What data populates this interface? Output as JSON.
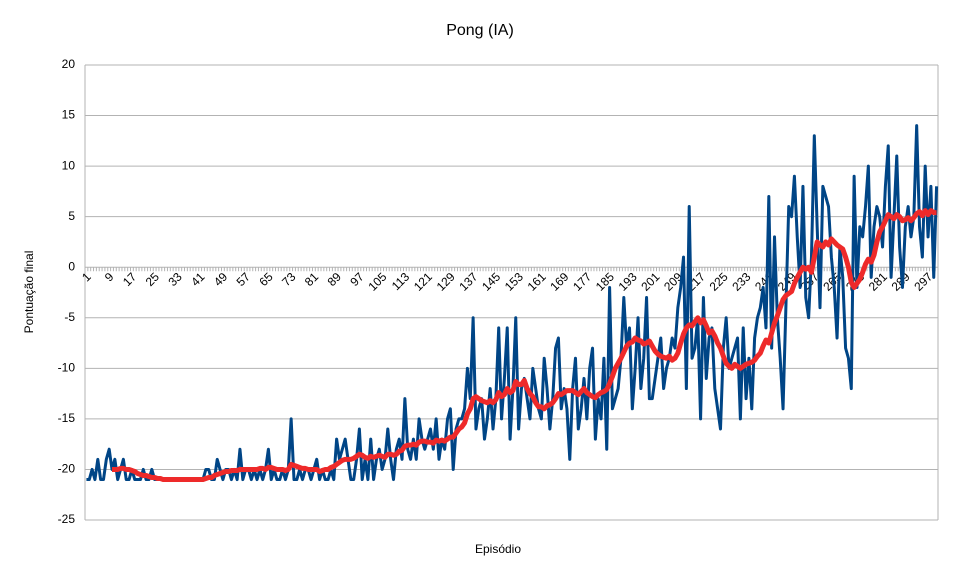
{
  "chart_data": {
    "type": "line",
    "title": "Pong (IA)",
    "x_label": "Episódio",
    "y_label": "Pontuação final",
    "categories": [
      1,
      null,
      null,
      null,
      null,
      null,
      null,
      null,
      9,
      null,
      null,
      null,
      null,
      null,
      null,
      null,
      17,
      null,
      null,
      null,
      null,
      null,
      null,
      null,
      25,
      null,
      null,
      null,
      null,
      null,
      null,
      null,
      33,
      null,
      null,
      null,
      null,
      null,
      null,
      null,
      41,
      null,
      null,
      null,
      null,
      null,
      null,
      null,
      49,
      null,
      null,
      null,
      null,
      null,
      null,
      null,
      57,
      null,
      null,
      null,
      null,
      null,
      null,
      null,
      65,
      null,
      null,
      null,
      null,
      null,
      null,
      null,
      73,
      null,
      null,
      null,
      null,
      null,
      null,
      null,
      81,
      null,
      null,
      null,
      null,
      null,
      null,
      null,
      89,
      null,
      null,
      null,
      null,
      null,
      null,
      null,
      97,
      null,
      null,
      null,
      null,
      null,
      null,
      null,
      105,
      null,
      null,
      null,
      null,
      null,
      null,
      null,
      113,
      null,
      null,
      null,
      null,
      null,
      null,
      null,
      121,
      null,
      null,
      null,
      null,
      null,
      null,
      null,
      129,
      null,
      null,
      null,
      null,
      null,
      null,
      null,
      137,
      null,
      null,
      null,
      null,
      null,
      null,
      null,
      145,
      null,
      null,
      null,
      null,
      null,
      null,
      null,
      153,
      null,
      null,
      null,
      null,
      null,
      null,
      null,
      161,
      null,
      null,
      null,
      null,
      null,
      null,
      null,
      169,
      null,
      null,
      null,
      null,
      null,
      null,
      null,
      177,
      null,
      null,
      null,
      null,
      null,
      null,
      null,
      185,
      null,
      null,
      null,
      null,
      null,
      null,
      null,
      193,
      null,
      null,
      null,
      null,
      null,
      null,
      null,
      201,
      null,
      null,
      null,
      null,
      null,
      null,
      null,
      209,
      null,
      null,
      null,
      null,
      null,
      null,
      null,
      217,
      null,
      null,
      null,
      null,
      null,
      null,
      null,
      225,
      null,
      null,
      null,
      null,
      null,
      null,
      null,
      233,
      null,
      null,
      null,
      null,
      null,
      null,
      null,
      241,
      null,
      null,
      null,
      null,
      null,
      null,
      null,
      249,
      null,
      null,
      null,
      null,
      null,
      null,
      null,
      257,
      null,
      null,
      null,
      null,
      null,
      null,
      null,
      265,
      null,
      null,
      null,
      null,
      null,
      null,
      null,
      273,
      null,
      null,
      null,
      null,
      null,
      null,
      null,
      281,
      null,
      null,
      null,
      null,
      null,
      null,
      null,
      289,
      null,
      null,
      null,
      null,
      null,
      null,
      null,
      297,
      null,
      null,
      null
    ],
    "series": [
      {
        "color": "#004586",
        "width": 3,
        "values": [
          -21,
          -21,
          -20,
          -21,
          -19,
          -21,
          -21,
          -19,
          -18,
          -20,
          -19,
          -21,
          -20,
          -19,
          -21,
          -21,
          -20,
          -21,
          -21,
          -21,
          -20,
          -21,
          -21,
          -20,
          -21,
          -21,
          -21,
          -21,
          -21,
          -21,
          -21,
          -21,
          -21,
          -21,
          -21,
          -21,
          -21,
          -21,
          -21,
          -21,
          -21,
          -21,
          -20,
          -20,
          -21,
          -21,
          -19,
          -20,
          -21,
          -20,
          -20,
          -21,
          -20,
          -21,
          -18,
          -21,
          -20,
          -20,
          -21,
          -20,
          -21,
          -20,
          -21,
          -20,
          -18,
          -21,
          -20,
          -21,
          -21,
          -20,
          -21,
          -20,
          -15,
          -21,
          -21,
          -20,
          -21,
          -20,
          -20,
          -21,
          -20,
          -19,
          -21,
          -20,
          -21,
          -21,
          -20,
          -21,
          -17,
          -19,
          -18,
          -17,
          -19,
          -21,
          -21,
          -19,
          -16,
          -21,
          -19,
          -21,
          -17,
          -21,
          -19,
          -18,
          -20,
          -19,
          -16,
          -19,
          -21,
          -18,
          -17,
          -19,
          -13,
          -18,
          -19,
          -17,
          -19,
          -15,
          -17,
          -18,
          -17,
          -16,
          -18,
          -15,
          -19,
          -17,
          -18,
          -15,
          -14,
          -20,
          -16,
          -15,
          -15,
          -14,
          -10,
          -13,
          -5,
          -16,
          -14,
          -13,
          -17,
          -15,
          -12,
          -16,
          -13,
          -6,
          -15,
          -11,
          -6,
          -17,
          -12,
          -5,
          -16,
          -12,
          -11,
          -13,
          -15,
          -10,
          -12,
          -14,
          -15,
          -9,
          -12,
          -16,
          -13,
          -8,
          -7,
          -14,
          -12,
          -14,
          -19,
          -12,
          -9,
          -16,
          -14,
          -11,
          -15,
          -10,
          -8,
          -17,
          -13,
          -15,
          -9,
          -18,
          -2,
          -14,
          -13,
          -12,
          -9,
          -3,
          -8,
          -6,
          -14,
          -10,
          -5,
          -12,
          -9,
          -3,
          -13,
          -13,
          -11,
          -9,
          -7,
          -12,
          -10,
          -9,
          -7,
          -8,
          -4,
          -2,
          1,
          -12,
          6,
          -9,
          -8,
          -5,
          -15,
          -3,
          -11,
          -7,
          -6,
          -12,
          -14,
          -16,
          -8,
          -5,
          -10,
          -9,
          -8,
          -7,
          -15,
          -6,
          -13,
          -9,
          -14,
          -7,
          -5,
          -4,
          -2,
          -6,
          7,
          -8,
          3,
          -5,
          -9,
          -14,
          -4,
          6,
          5,
          9,
          3,
          -2,
          8,
          -3,
          -5,
          1,
          13,
          4,
          -4,
          8,
          7,
          6,
          1,
          -2,
          -7,
          2,
          -1,
          -8,
          -9,
          -12,
          9,
          -2,
          4,
          3,
          6,
          10,
          -1,
          4,
          6,
          5,
          2,
          8,
          12,
          -1,
          5,
          11,
          2,
          -2,
          4,
          6,
          3,
          5,
          14,
          4,
          1,
          10,
          3,
          8,
          -1,
          8
        ]
      },
      {
        "color": "#ee2a2a",
        "width": 5,
        "values": [
          null,
          null,
          null,
          null,
          null,
          null,
          null,
          null,
          null,
          -20,
          -20,
          -20,
          -19.9,
          -19.9,
          -20,
          -20,
          -20.1,
          -20.2,
          -20.4,
          -20.5,
          -20.6,
          -20.6,
          -20.7,
          -20.8,
          -20.8,
          -20.9,
          -20.9,
          -21,
          -21,
          -21,
          -21,
          -21,
          -21,
          -21,
          -21,
          -21,
          -21,
          -21,
          -21,
          -21,
          -21,
          -21,
          -20.9,
          -20.8,
          -20.8,
          -20.6,
          -20.5,
          -20.4,
          -20.3,
          -20.2,
          -20.2,
          -20.1,
          -20.1,
          -20.1,
          -20,
          -20,
          -20,
          -20,
          -20,
          -20,
          -20,
          -19.9,
          -19.9,
          -20,
          -19.8,
          -19.8,
          -19.9,
          -20,
          -20,
          -20,
          -20.1,
          -20,
          -19.5,
          -19.6,
          -19.7,
          -19.8,
          -19.9,
          -19.9,
          -20,
          -20,
          -20,
          -20,
          -20.2,
          -20.1,
          -20,
          -20,
          -19.8,
          -19.7,
          -19.5,
          -19.3,
          -19.1,
          -19,
          -19,
          -19,
          -18.9,
          -18.7,
          -18.5,
          -18.6,
          -18.8,
          -18.9,
          -18.7,
          -18.8,
          -18.7,
          -18.6,
          -18.7,
          -18.8,
          -18.5,
          -18.5,
          -18.6,
          -18.5,
          -18.2,
          -18.1,
          -17.7,
          -17.6,
          -17.6,
          -17.5,
          -17.6,
          -17.3,
          -17.2,
          -17.2,
          -17.3,
          -17.3,
          -17.4,
          -17.1,
          -17.2,
          -17.1,
          -17.2,
          -17,
          -16.8,
          -16.8,
          -16.4,
          -16,
          -15.8,
          -15.4,
          -14.5,
          -14,
          -13,
          -12.8,
          -13,
          -13.2,
          -13.3,
          -13.4,
          -13.2,
          -13.4,
          -13.1,
          -12.4,
          -12.8,
          -12.6,
          -12,
          -12.4,
          -12.2,
          -11.3,
          -11.6,
          -11.6,
          -11.2,
          -12,
          -12.5,
          -12.8,
          -13.4,
          -13.8,
          -13.8,
          -14,
          -13.7,
          -13.6,
          -13.4,
          -13,
          -12.5,
          -12.6,
          -12.4,
          -12.2,
          -12.2,
          -12.2,
          -12.4,
          -12.6,
          -12.3,
          -12,
          -12.4,
          -12.6,
          -12.8,
          -12.9,
          -12.6,
          -12.4,
          -12.3,
          -12.1,
          -11.5,
          -10.8,
          -10,
          -9.5,
          -9,
          -8.4,
          -7.8,
          -7.5,
          -7.4,
          -7,
          -7.2,
          -7.3,
          -7.6,
          -7.5,
          -7.3,
          -7.8,
          -8.3,
          -8.6,
          -8.8,
          -8.9,
          -9,
          -8.8,
          -9.2,
          -9,
          -8.5,
          -7.5,
          -6.6,
          -6,
          -5.7,
          -5.8,
          -5.4,
          -5,
          -5.5,
          -5.2,
          -5.8,
          -6.5,
          -6.3,
          -6.8,
          -7.5,
          -8,
          -8.8,
          -9.5,
          -9.8,
          -10,
          -9.6,
          -9.8,
          -10,
          -9.8,
          -9.6,
          -9.5,
          -9.4,
          -9.2,
          -8.8,
          -8.5,
          -7.8,
          -7.2,
          -7.5,
          -6.5,
          -5.5,
          -4.8,
          -4,
          -3.2,
          -2.8,
          -2.6,
          -2.4,
          -1.6,
          -1,
          -0.5,
          0,
          -0.2,
          0,
          -0.5,
          1,
          2.5,
          2.2,
          2,
          2.5,
          2.2,
          2.8,
          2.5,
          2.2,
          2,
          1.8,
          1,
          0,
          -1.5,
          -2,
          -1.6,
          -1.2,
          -0.5,
          0.3,
          0.8,
          0.5,
          1.2,
          2.5,
          3.5,
          4,
          4.6,
          5.2,
          5,
          4.8,
          5.2,
          5,
          4.6,
          4.7,
          4.9,
          4.6,
          4.9,
          5.3,
          5.5,
          5.1,
          5.6,
          5.2,
          5.6,
          5.4,
          5.4
        ]
      }
    ],
    "ylim": [
      -25,
      20
    ],
    "yticks": [
      -25,
      -20,
      -15,
      -10,
      -5,
      0,
      5,
      10,
      15,
      20
    ],
    "grid": true
  }
}
